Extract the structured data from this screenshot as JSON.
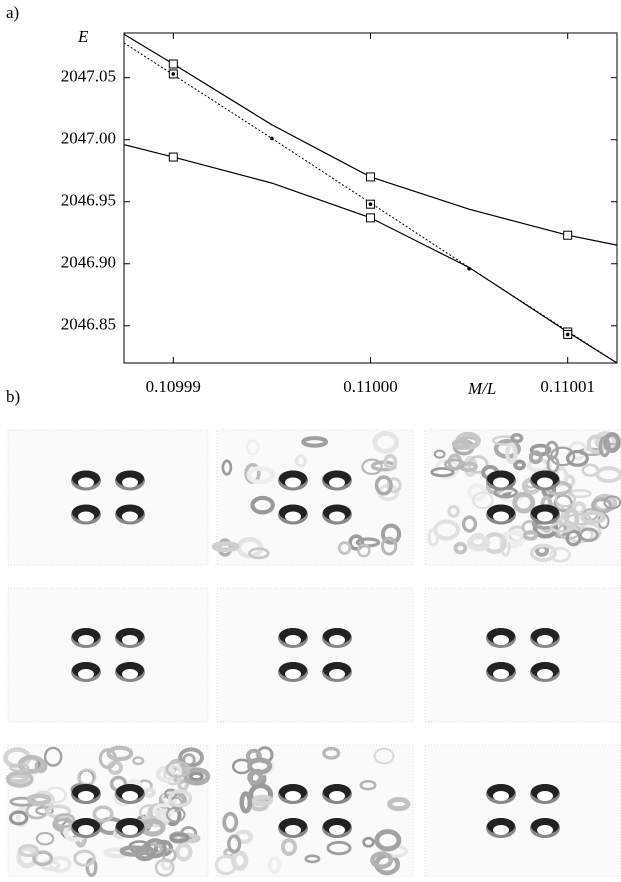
{
  "panel_a_label": "a)",
  "panel_b_label": "b)",
  "chart_data": {
    "type": "line",
    "xlabel": "M/L",
    "ylabel": "E",
    "xlim": [
      0.1099875,
      0.1100125
    ],
    "ylim": [
      2046.82,
      2047.086
    ],
    "xticks": [
      0.10999,
      {
        "value": 0.11,
        "label": "0.11000"
      },
      0.11001
    ],
    "yticks": [
      {
        "value": 2046.85,
        "label": "2046.85"
      },
      {
        "value": 2046.9,
        "label": "2046.90"
      },
      {
        "value": 2046.95,
        "label": "2046.95"
      },
      {
        "value": 2047,
        "label": "2047.00"
      },
      {
        "value": 2047.05,
        "label": "2047.05"
      }
    ],
    "x": [
      0.1099875,
      0.10999,
      0.109995,
      0.11,
      0.110005,
      0.11001,
      0.1100125
    ],
    "series": [
      {
        "color": "#000000",
        "line": "solid",
        "values": [
          2047.085,
          2047.061,
          2047.012,
          2046.97,
          2046.944,
          2046.923,
          2046.915
        ]
      },
      {
        "color": "#000000",
        "line": "solid",
        "values": [
          2046.996,
          2046.986,
          2046.965,
          2046.937,
          2046.897,
          2046.845,
          2046.82
        ]
      },
      {
        "color": "#000000",
        "line": "dashed",
        "x": [
          0.1099875,
          0.109995,
          0.110005,
          0.1100125
        ],
        "values": [
          2047.078,
          2047.001,
          2046.897,
          2046.82
        ]
      }
    ],
    "markers": [
      {
        "shape": "square",
        "x": [
          0.10999,
          0.10999,
          0.11,
          0.11,
          0.11001,
          0.11001
        ],
        "values": [
          2047.061,
          2046.986,
          2046.97,
          2046.937,
          2046.923,
          2046.845
        ]
      },
      {
        "shape": "dotted-square",
        "x": [
          0.10999,
          0.11,
          0.11001
        ],
        "values": [
          2047.053,
          2046.948,
          2046.843
        ]
      },
      {
        "shape": "dot",
        "x": [
          0.109995,
          0.110005
        ],
        "values": [
          2047.001,
          2046.896
        ]
      }
    ]
  }
}
